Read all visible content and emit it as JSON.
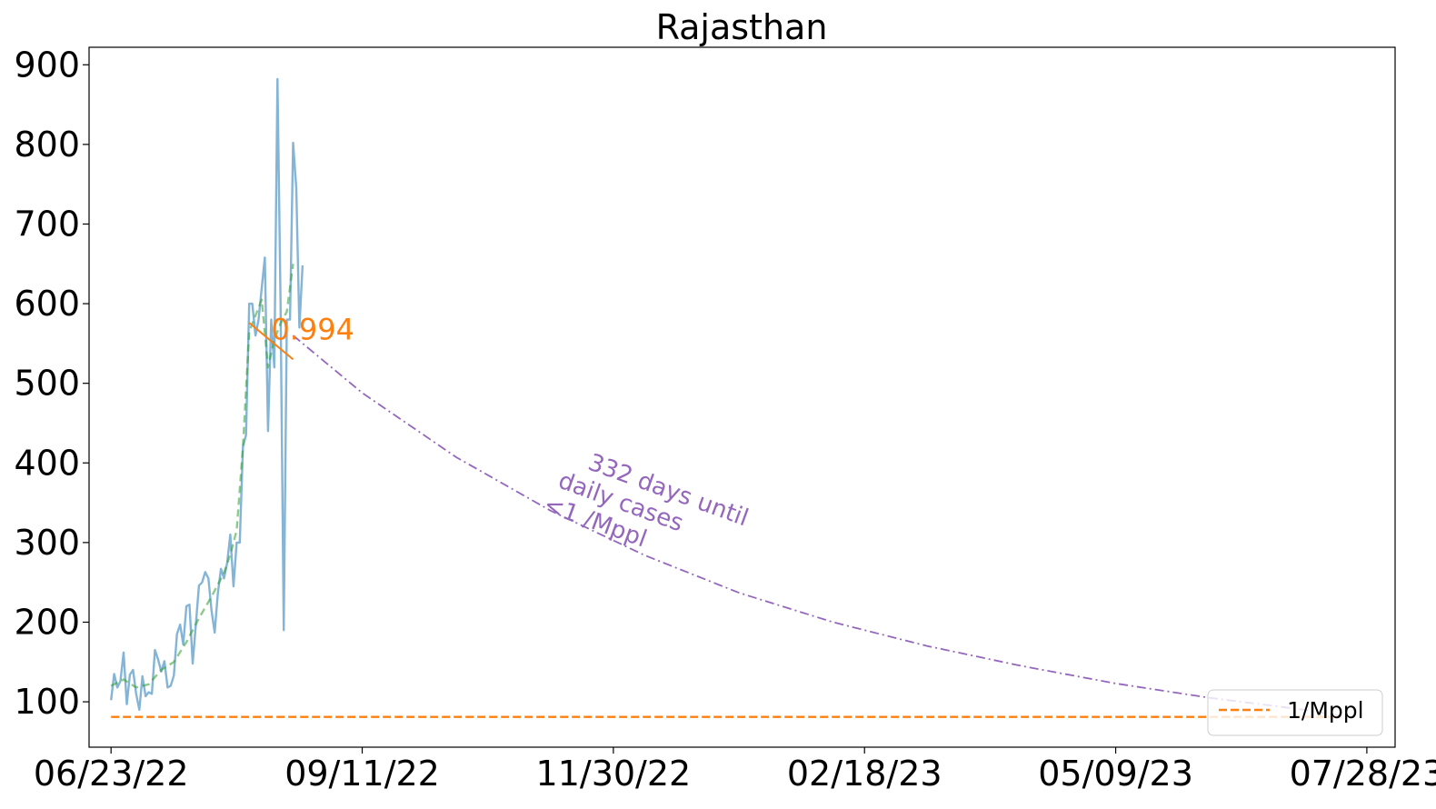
{
  "chart_data": {
    "type": "line",
    "title": "Rajasthan",
    "xlabel": "",
    "ylabel": "",
    "x_axis": {
      "type": "date",
      "start": "2022-06-16",
      "end": "2023-08-06",
      "tick_dates": [
        "2022-06-23",
        "2022-09-11",
        "2022-11-30",
        "2023-02-18",
        "2023-05-09",
        "2023-07-28"
      ],
      "tick_labels": [
        "06/23/22",
        "09/11/22",
        "11/30/22",
        "02/18/23",
        "05/09/23",
        "07/28/23"
      ]
    },
    "y_axis": {
      "ylim": [
        43,
        922
      ],
      "ticks": [
        100,
        200,
        300,
        400,
        500,
        600,
        700,
        800,
        900
      ],
      "tick_labels": [
        "100",
        "200",
        "300",
        "400",
        "500",
        "600",
        "700",
        "800",
        "900"
      ]
    },
    "grid": false,
    "legend": {
      "placement": "bottom-right",
      "entries": [
        {
          "label": "1/Mppl",
          "color": "#ff7f0e",
          "style": "dashed"
        }
      ]
    },
    "series": [
      {
        "kind": "daily",
        "color": "#1f77b4",
        "style": "solid",
        "x": [
          "2022-06-23",
          "2022-06-24",
          "2022-06-25",
          "2022-06-26",
          "2022-06-27",
          "2022-06-28",
          "2022-06-29",
          "2022-06-30",
          "2022-07-01",
          "2022-07-02",
          "2022-07-03",
          "2022-07-04",
          "2022-07-05",
          "2022-07-06",
          "2022-07-07",
          "2022-07-08",
          "2022-07-09",
          "2022-07-10",
          "2022-07-11",
          "2022-07-12",
          "2022-07-13",
          "2022-07-14",
          "2022-07-15",
          "2022-07-16",
          "2022-07-17",
          "2022-07-18",
          "2022-07-19",
          "2022-07-20",
          "2022-07-21",
          "2022-07-22",
          "2022-07-23",
          "2022-07-24",
          "2022-07-25",
          "2022-07-26",
          "2022-07-27",
          "2022-07-28",
          "2022-07-29",
          "2022-07-30",
          "2022-07-31",
          "2022-08-01",
          "2022-08-02",
          "2022-08-03",
          "2022-08-04",
          "2022-08-05",
          "2022-08-06",
          "2022-08-07",
          "2022-08-08",
          "2022-08-09",
          "2022-08-10",
          "2022-08-11",
          "2022-08-12",
          "2022-08-13",
          "2022-08-14",
          "2022-08-15",
          "2022-08-16",
          "2022-08-17",
          "2022-08-18",
          "2022-08-19",
          "2022-08-20",
          "2022-08-21",
          "2022-08-22",
          "2022-08-23",
          "2022-08-24",
          "2022-08-25",
          "2022-08-26",
          "2022-08-27",
          "2022-08-28"
        ],
        "values": [
          102,
          135,
          118,
          126,
          162,
          97,
          134,
          140,
          110,
          90,
          132,
          107,
          112,
          110,
          165,
          153,
          138,
          151,
          118,
          120,
          133,
          185,
          197,
          172,
          220,
          222,
          148,
          196,
          246,
          250,
          263,
          255,
          215,
          187,
          235,
          267,
          255,
          275,
          310,
          245,
          300,
          300,
          420,
          435,
          600,
          600,
          560,
          580,
          620,
          658,
          440,
          580,
          520,
          882,
          600,
          190,
          580,
          580,
          802,
          745,
          570,
          648,
          null,
          null,
          null,
          null,
          null
        ]
      },
      {
        "kind": "smoothed",
        "color": "#2ca02c",
        "style": "dashed",
        "x": [
          "2022-06-23",
          "2022-06-27",
          "2022-07-01",
          "2022-07-05",
          "2022-07-09",
          "2022-07-13",
          "2022-07-17",
          "2022-07-21",
          "2022-07-25",
          "2022-07-29",
          "2022-07-31",
          "2022-08-02",
          "2022-08-04",
          "2022-08-06",
          "2022-08-08",
          "2022-08-10",
          "2022-08-12",
          "2022-08-14",
          "2022-08-16",
          "2022-08-18",
          "2022-08-20"
        ],
        "values": [
          120,
          128,
          118,
          122,
          140,
          150,
          175,
          205,
          232,
          262,
          285,
          315,
          420,
          565,
          585,
          605,
          520,
          555,
          575,
          590,
          650
        ]
      },
      {
        "kind": "trend-fit",
        "label": "0.994",
        "color": "#ff7f0e",
        "style": "solid",
        "x": [
          "2022-08-06",
          "2022-08-20"
        ],
        "values": [
          576,
          530
        ]
      },
      {
        "kind": "projection",
        "color": "#9467bd",
        "style": "dash-dot",
        "x": [
          "2022-08-20",
          "2022-09-11",
          "2022-10-11",
          "2022-11-10",
          "2022-12-10",
          "2023-01-09",
          "2023-02-08",
          "2023-03-10",
          "2023-04-09",
          "2023-05-09",
          "2023-06-08",
          "2023-07-08",
          "2023-07-20"
        ],
        "values": [
          560,
          488,
          407,
          340,
          284,
          237,
          200,
          170,
          145,
          123,
          105,
          90,
          82
        ]
      },
      {
        "kind": "threshold",
        "label": "1/Mppl",
        "color": "#ff7f0e",
        "style": "dashed",
        "x": [
          "2022-06-23",
          "2023-07-20"
        ],
        "values": [
          81,
          81
        ]
      }
    ],
    "annotations": [
      {
        "text_lines": [
          "332 days until",
          "daily cases",
          "<1 /Mppl"
        ],
        "color": "#9467bd",
        "x": "2022-11-12",
        "y": 370,
        "rotation_deg": 20
      },
      {
        "text": "0.994",
        "color": "#ff7f0e",
        "x": "2022-08-13",
        "y": 555
      }
    ]
  }
}
